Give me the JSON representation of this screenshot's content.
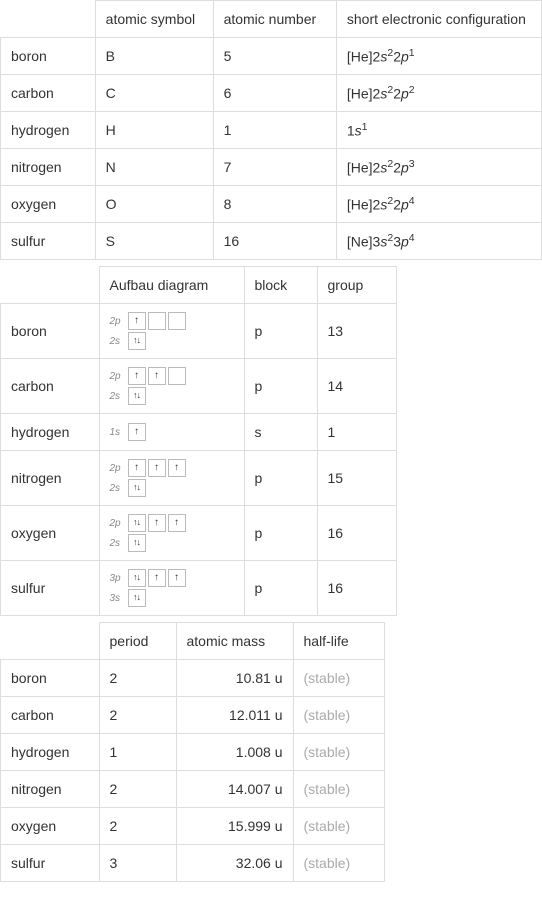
{
  "table1": {
    "headers": {
      "symbol": "atomic symbol",
      "number": "atomic number",
      "config": "short electronic configuration"
    },
    "col_widths": {
      "name": 78,
      "symbol": 110,
      "number": 116,
      "config": 210
    },
    "rows": [
      {
        "name": "boron",
        "symbol": "B",
        "number": "5",
        "config_prefix": "[He]2",
        "config_s_exp": "2",
        "config_mid": "2",
        "config_p_exp": "1",
        "config_letter1": "s",
        "config_letter2": "p"
      },
      {
        "name": "carbon",
        "symbol": "C",
        "number": "6",
        "config_prefix": "[He]2",
        "config_s_exp": "2",
        "config_mid": "2",
        "config_p_exp": "2",
        "config_letter1": "s",
        "config_letter2": "p"
      },
      {
        "name": "hydrogen",
        "symbol": "H",
        "number": "1",
        "config_prefix": "1",
        "config_s_exp": "1",
        "config_mid": "",
        "config_p_exp": "",
        "config_letter1": "s",
        "config_letter2": ""
      },
      {
        "name": "nitrogen",
        "symbol": "N",
        "number": "7",
        "config_prefix": "[He]2",
        "config_s_exp": "2",
        "config_mid": "2",
        "config_p_exp": "3",
        "config_letter1": "s",
        "config_letter2": "p"
      },
      {
        "name": "oxygen",
        "symbol": "O",
        "number": "8",
        "config_prefix": "[He]2",
        "config_s_exp": "2",
        "config_mid": "2",
        "config_p_exp": "4",
        "config_letter1": "s",
        "config_letter2": "p"
      },
      {
        "name": "sulfur",
        "symbol": "S",
        "number": "16",
        "config_prefix": "[Ne]3",
        "config_s_exp": "2",
        "config_mid": "3",
        "config_p_exp": "4",
        "config_letter1": "s",
        "config_letter2": "p"
      }
    ]
  },
  "table2": {
    "headers": {
      "aufbau": "Aufbau diagram",
      "block": "block",
      "group": "group"
    },
    "col_widths": {
      "name": 78,
      "aufbau": 124,
      "block": 52,
      "group": 58
    },
    "rows": [
      {
        "name": "boron",
        "block": "p",
        "group": "13",
        "orbitals": [
          {
            "label": "2p",
            "boxes": [
              "up",
              "",
              ""
            ]
          },
          {
            "label": "2s",
            "boxes": [
              "updown"
            ]
          }
        ]
      },
      {
        "name": "carbon",
        "block": "p",
        "group": "14",
        "orbitals": [
          {
            "label": "2p",
            "boxes": [
              "up",
              "up",
              ""
            ]
          },
          {
            "label": "2s",
            "boxes": [
              "updown"
            ]
          }
        ]
      },
      {
        "name": "hydrogen",
        "block": "s",
        "group": "1",
        "orbitals": [
          {
            "label": "1s",
            "boxes": [
              "up"
            ]
          }
        ]
      },
      {
        "name": "nitrogen",
        "block": "p",
        "group": "15",
        "orbitals": [
          {
            "label": "2p",
            "boxes": [
              "up",
              "up",
              "up"
            ]
          },
          {
            "label": "2s",
            "boxes": [
              "updown"
            ]
          }
        ]
      },
      {
        "name": "oxygen",
        "block": "p",
        "group": "16",
        "orbitals": [
          {
            "label": "2p",
            "boxes": [
              "updown",
              "up",
              "up"
            ]
          },
          {
            "label": "2s",
            "boxes": [
              "updown"
            ]
          }
        ]
      },
      {
        "name": "sulfur",
        "block": "p",
        "group": "16",
        "orbitals": [
          {
            "label": "3p",
            "boxes": [
              "updown",
              "up",
              "up"
            ]
          },
          {
            "label": "3s",
            "boxes": [
              "updown"
            ]
          }
        ]
      }
    ]
  },
  "table3": {
    "headers": {
      "period": "period",
      "mass": "atomic mass",
      "halflife": "half-life"
    },
    "col_widths": {
      "name": 78,
      "period": 56,
      "mass": 96,
      "halflife": 70
    },
    "rows": [
      {
        "name": "boron",
        "period": "2",
        "mass": "10.81 u",
        "halflife": "(stable)"
      },
      {
        "name": "carbon",
        "period": "2",
        "mass": "12.011 u",
        "halflife": "(stable)"
      },
      {
        "name": "hydrogen",
        "period": "1",
        "mass": "1.008 u",
        "halflife": "(stable)"
      },
      {
        "name": "nitrogen",
        "period": "2",
        "mass": "14.007 u",
        "halflife": "(stable)"
      },
      {
        "name": "oxygen",
        "period": "2",
        "mass": "15.999 u",
        "halflife": "(stable)"
      },
      {
        "name": "sulfur",
        "period": "3",
        "mass": "32.06 u",
        "halflife": "(stable)"
      }
    ]
  },
  "colors": {
    "border": "#dddddd",
    "text": "#333333",
    "muted": "#aaaaaa",
    "orb_border": "#bbbbbb",
    "orb_label": "#888888",
    "background": "#ffffff"
  }
}
